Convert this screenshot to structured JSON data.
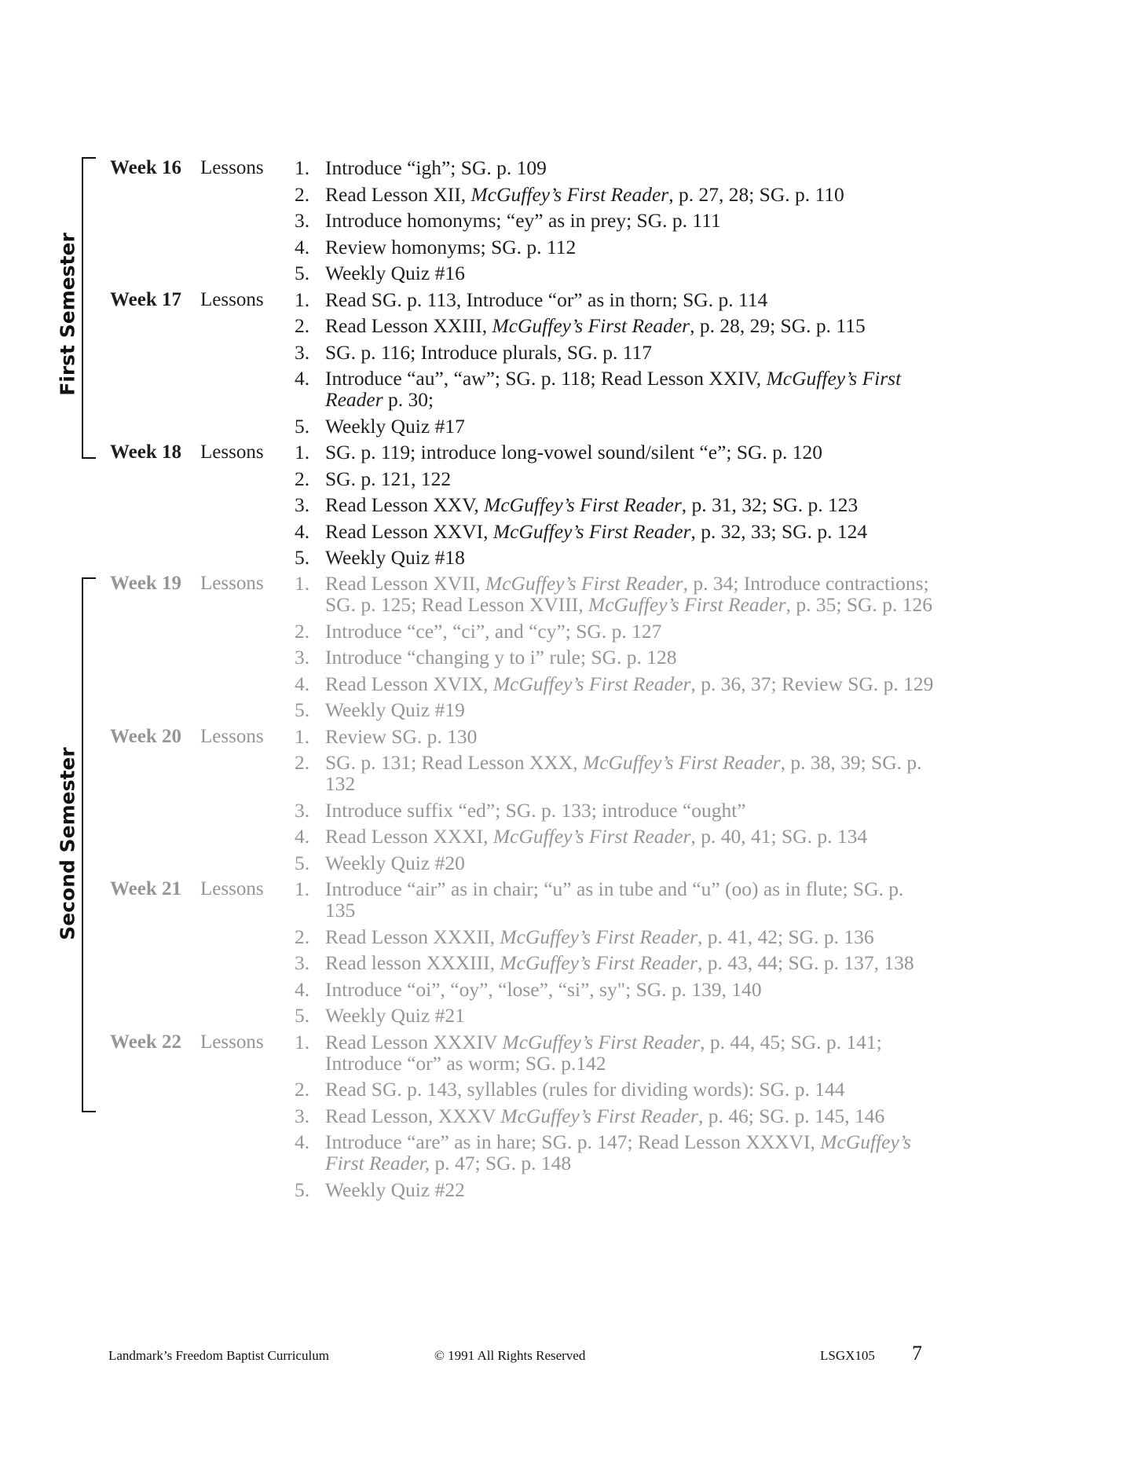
{
  "semesters": [
    {
      "label": "First Semester",
      "weeks": [
        {
          "week": "Week 16",
          "lessons_label": "Lessons",
          "items": [
            [
              {
                "t": "Introduce “igh”; SG. p. 109"
              }
            ],
            [
              {
                "t": "Read Lesson XII, "
              },
              {
                "t": "McGuffey’s First Reader",
                "i": true
              },
              {
                "t": ", p. 27, 28; SG. p. 110"
              }
            ],
            [
              {
                "t": "Introduce homonyms; “ey” as in prey; SG. p. 111"
              }
            ],
            [
              {
                "t": "Review homonyms; SG. p. 112"
              }
            ],
            [
              {
                "t": "Weekly Quiz #16"
              }
            ]
          ]
        },
        {
          "week": "Week 17",
          "lessons_label": "Lessons",
          "items": [
            [
              {
                "t": "Read SG. p. 113, Introduce “or” as in thorn; SG. p. 114"
              }
            ],
            [
              {
                "t": "Read Lesson XXIII, "
              },
              {
                "t": "McGuffey’s First Reader",
                "i": true
              },
              {
                "t": ", p. 28, 29; SG. p. 115"
              }
            ],
            [
              {
                "t": "SG. p. 116; Introduce plurals, SG. p. 117"
              }
            ],
            [
              {
                "t": "Introduce “au”, “aw”; SG. p. 118; Read Lesson XXIV, "
              },
              {
                "t": "McGuffey’s First Reader",
                "i": true
              },
              {
                "t": " p. 30;"
              }
            ],
            [
              {
                "t": "Weekly Quiz #17"
              }
            ]
          ]
        },
        {
          "week": "Week 18",
          "lessons_label": "Lessons",
          "items": [
            [
              {
                "t": "SG. p. 119; introduce long-vowel sound/silent “e”; SG. p. 120"
              }
            ],
            [
              {
                "t": "SG. p. 121, 122"
              }
            ],
            [
              {
                "t": "Read Lesson XXV, "
              },
              {
                "t": "McGuffey’s First Reader",
                "i": true
              },
              {
                "t": ", p. 31, 32; SG. p. 123"
              }
            ],
            [
              {
                "t": "Read Lesson XXVI, "
              },
              {
                "t": "McGuffey’s First Reader",
                "i": true
              },
              {
                "t": ", p. 32, 33; SG. p. 124"
              }
            ],
            [
              {
                "t": "Weekly Quiz #18"
              }
            ]
          ]
        }
      ]
    },
    {
      "label": "Second Semester",
      "weeks": [
        {
          "week": "Week 19",
          "lessons_label": "Lessons",
          "items": [
            [
              {
                "t": "Read Lesson XVII, "
              },
              {
                "t": "McGuffey’s First Reader",
                "i": true
              },
              {
                "t": ", p. 34; Introduce contractions; SG. p. 125; Read Lesson XVIII, "
              },
              {
                "t": "McGuffey’s First Reader",
                "i": true
              },
              {
                "t": ", p. 35; SG. p. 126"
              }
            ],
            [
              {
                "t": "Introduce “ce”, “ci”, and “cy”; SG. p. 127"
              }
            ],
            [
              {
                "t": "Introduce “changing y to i” rule; SG. p. 128"
              }
            ],
            [
              {
                "t": "Read Lesson XVIX,  "
              },
              {
                "t": "McGuffey’s First Reader",
                "i": true
              },
              {
                "t": ", p. 36, 37; Review SG. p. 129"
              }
            ],
            [
              {
                "t": "Weekly Quiz #19"
              }
            ]
          ]
        },
        {
          "week": "Week 20",
          "lessons_label": "Lessons",
          "items": [
            [
              {
                "t": "Review SG. p. 130"
              }
            ],
            [
              {
                "t": "SG. p. 131; Read Lesson XXX,  "
              },
              {
                "t": "McGuffey’s First Reader",
                "i": true
              },
              {
                "t": ", p. 38, 39; SG. p. 132"
              }
            ],
            [
              {
                "t": "Introduce suffix “ed”; SG. p. 133; introduce “ought”"
              }
            ],
            [
              {
                "t": "Read Lesson XXXI, "
              },
              {
                "t": "McGuffey’s First Reader",
                "i": true
              },
              {
                "t": ", p. 40, 41; SG. p. 134"
              }
            ],
            [
              {
                "t": "Weekly Quiz #20"
              }
            ]
          ]
        },
        {
          "week": "Week 21",
          "lessons_label": "Lessons",
          "items": [
            [
              {
                "t": "Introduce “air” as in chair; “u” as in tube and “u” (oo) as in flute; SG. p. 135"
              }
            ],
            [
              {
                "t": "Read Lesson XXXII, "
              },
              {
                "t": "McGuffey’s First Reader",
                "i": true
              },
              {
                "t": ", p. 41, 42; SG. p. 136"
              }
            ],
            [
              {
                "t": "Read lesson XXXIII, "
              },
              {
                "t": "McGuffey’s First Reader",
                "i": true
              },
              {
                "t": ", p. 43, 44; SG. p. 137, 138"
              }
            ],
            [
              {
                "t": "Introduce “oi”, “oy”, “lose”, “si”, sy\"; SG. p. 139, 140"
              }
            ],
            [
              {
                "t": "Weekly Quiz #21"
              }
            ]
          ]
        },
        {
          "week": "Week 22",
          "lessons_label": "Lessons",
          "items": [
            [
              {
                "t": "Read Lesson XXXIV "
              },
              {
                "t": "McGuffey’s First Reader",
                "i": true
              },
              {
                "t": ", p. 44, 45; SG. p. 141; Introduce “or” as worm; SG. p.142"
              }
            ],
            [
              {
                "t": "Read SG. p. 143, syllables (rules for dividing words): SG. p. 144"
              }
            ],
            [
              {
                "t": "Read Lesson, XXXV "
              },
              {
                "t": "McGuffey’s First Reader",
                "i": true
              },
              {
                "t": ", p. 46; SG. p. 145, 146"
              }
            ],
            [
              {
                "t": "Introduce “are” as in hare; SG. p. 147; Read Lesson XXXVI, "
              },
              {
                "t": "McGuffey’s First Reader,",
                "i": true
              },
              {
                "t": " p. 47; SG. p. 148"
              }
            ],
            [
              {
                "t": "Weekly Quiz #22"
              }
            ]
          ]
        }
      ]
    }
  ],
  "footer": {
    "publisher": "Landmark’s Freedom Baptist Curriculum",
    "copyright": "© 1991 All Rights Reserved",
    "code": "LSGX105",
    "page_number": "7"
  },
  "colors": {
    "first_semester_text": "#1e1e1e",
    "second_semester_text": "#959595"
  }
}
